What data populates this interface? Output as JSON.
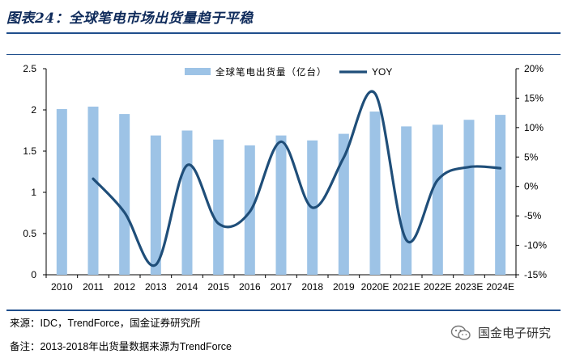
{
  "figure": {
    "title": "图表24：全球笔电市场出货量趋于平稳",
    "source": "来源：IDC，TrendForce，国金证券研究所",
    "remark": "备注：2013-2018年出货量数据来源为TrendForce",
    "watermark": "国金电子研究"
  },
  "colors": {
    "bar": "#9dc3e6",
    "line": "#1f4e79",
    "rule": "#1f4e8c"
  },
  "chart_data": {
    "type": "bar",
    "title": "",
    "categories": [
      "2010",
      "2011",
      "2012",
      "2013",
      "2014",
      "2015",
      "2016",
      "2017",
      "2018",
      "2019",
      "2020E",
      "2021E",
      "2022E",
      "2023E",
      "2024E"
    ],
    "series": [
      {
        "name": "全球笔电出货量（亿台）",
        "type": "bar",
        "axis": "left",
        "values": [
          2.01,
          2.04,
          1.95,
          1.69,
          1.75,
          1.64,
          1.57,
          1.69,
          1.63,
          1.71,
          1.98,
          1.8,
          1.82,
          1.88,
          1.94
        ]
      },
      {
        "name": "YOY",
        "type": "line",
        "axis": "right",
        "x": [
          "2011",
          "2012",
          "2013",
          "2014",
          "2015",
          "2016",
          "2017",
          "2018",
          "2019",
          "2020E",
          "2021E",
          "2022E",
          "2023E",
          "2024E"
        ],
        "values": [
          1.3,
          -4.4,
          -13.3,
          3.6,
          -6.3,
          -4.3,
          7.6,
          -3.6,
          4.9,
          15.8,
          -9.1,
          1.1,
          3.3,
          3.1
        ]
      }
    ],
    "y_left": {
      "ylim": [
        0,
        2.5
      ],
      "ticks": [
        "0",
        "0.5",
        "1",
        "1.5",
        "2",
        "2.5"
      ]
    },
    "y_right": {
      "ylim": [
        -15,
        20
      ],
      "ticks": [
        "-15%",
        "-10%",
        "-5%",
        "0%",
        "5%",
        "10%",
        "15%",
        "20%"
      ]
    },
    "legend": "top-center",
    "grid": false
  }
}
